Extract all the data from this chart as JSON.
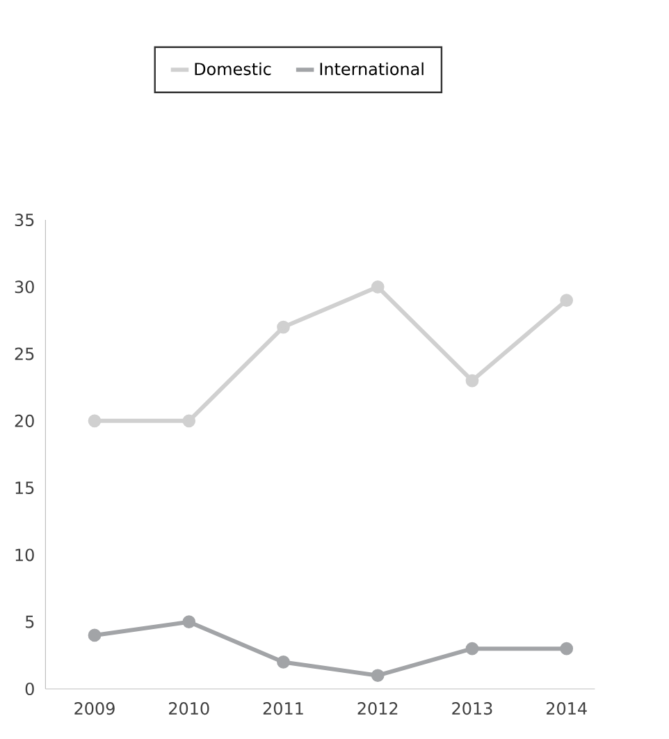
{
  "chart_data": {
    "type": "line",
    "categories": [
      "2009",
      "2010",
      "2011",
      "2012",
      "2013",
      "2014"
    ],
    "series": [
      {
        "name": "Domestic",
        "color": "#d0d0d0",
        "values": [
          20,
          20,
          27,
          30,
          23,
          29
        ]
      },
      {
        "name": "International",
        "color": "#a2a4a7",
        "values": [
          4,
          5,
          2,
          1,
          3,
          3
        ]
      }
    ],
    "ylim": [
      0,
      35
    ],
    "yticks": [
      0,
      5,
      10,
      15,
      20,
      25,
      30,
      35
    ],
    "grid": false,
    "legend": "top",
    "marker": "circle",
    "line_style": "solid"
  }
}
